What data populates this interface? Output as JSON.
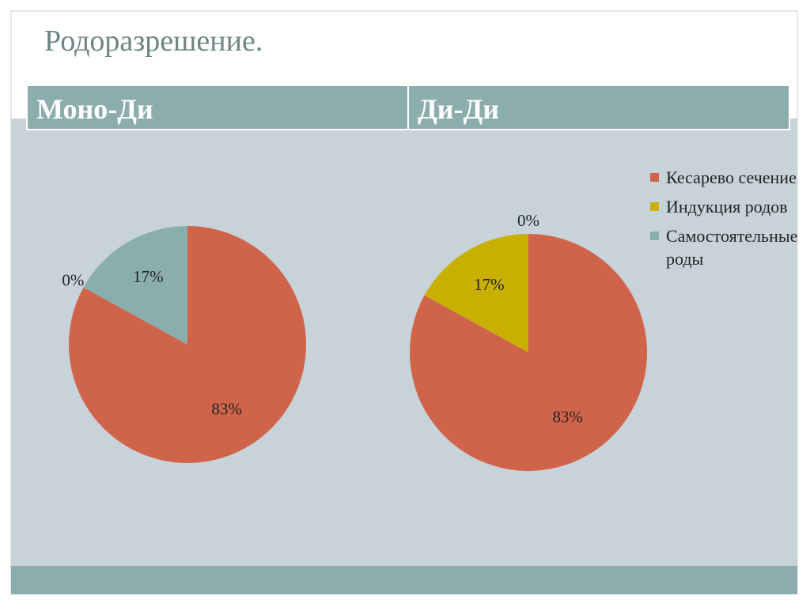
{
  "title": "Родоразрешение.",
  "chart_data": [
    {
      "type": "pie",
      "title": "Моно-Ди",
      "categories": [
        "Кесарево сечение",
        "Индукция родов",
        "Самостоятельные роды"
      ],
      "values": [
        83,
        0,
        17
      ],
      "value_labels": [
        "83%",
        "0%",
        "17%"
      ],
      "colors": [
        "#d0644a",
        "#c9b000",
        "#8aaeae"
      ],
      "legend": "right"
    },
    {
      "type": "pie",
      "title": "Ди-Ди",
      "categories": [
        "Кесарево сечение",
        "Индукция родов",
        "Самостоятельные роды"
      ],
      "values": [
        83,
        17,
        0
      ],
      "value_labels": [
        "83%",
        "17%",
        "0%"
      ],
      "colors": [
        "#d0644a",
        "#c9b000",
        "#8aaeae"
      ]
    }
  ]
}
